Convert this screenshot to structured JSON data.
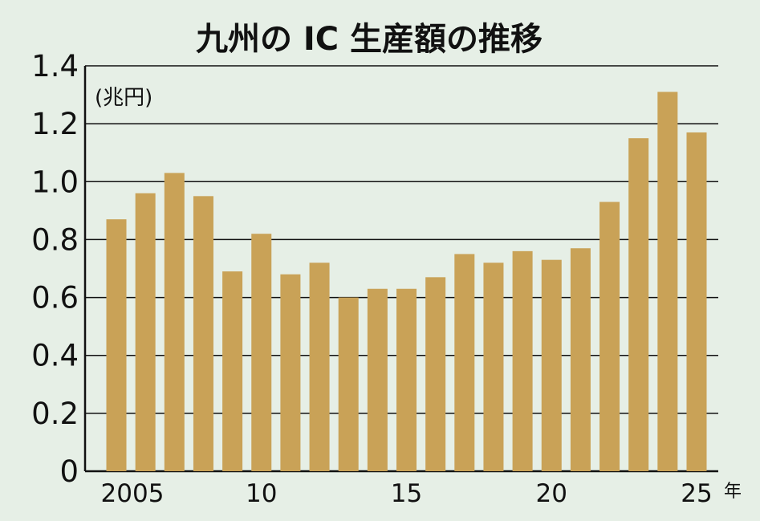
{
  "colors": {
    "background": "#e6efe6",
    "bar": "#c9a257",
    "grid": "#111111"
  },
  "chart_data": {
    "type": "bar",
    "title": "九州の IC 生産額の推移",
    "unit_label": "(兆円)",
    "x_unit_label": "年",
    "ylim": [
      0,
      1.4
    ],
    "yticks": [
      "0",
      "0.2",
      "0.4",
      "0.6",
      "0.8",
      "1.0",
      "1.2",
      "1.4"
    ],
    "xtick_labels": [
      {
        "year": 2005,
        "label": "2005"
      },
      {
        "year": 2010,
        "label": "10"
      },
      {
        "year": 2015,
        "label": "15"
      },
      {
        "year": 2020,
        "label": "20"
      },
      {
        "year": 2025,
        "label": "25"
      }
    ],
    "grid": true,
    "x": [
      2005,
      2006,
      2007,
      2008,
      2009,
      2010,
      2011,
      2012,
      2013,
      2014,
      2015,
      2016,
      2017,
      2018,
      2019,
      2020,
      2021,
      2022,
      2023,
      2024,
      2025
    ],
    "values": [
      0.87,
      0.96,
      1.03,
      0.95,
      0.69,
      0.82,
      0.68,
      0.72,
      0.6,
      0.63,
      0.63,
      0.67,
      0.75,
      0.72,
      0.76,
      0.73,
      0.77,
      0.93,
      1.15,
      1.31,
      1.17
    ]
  }
}
